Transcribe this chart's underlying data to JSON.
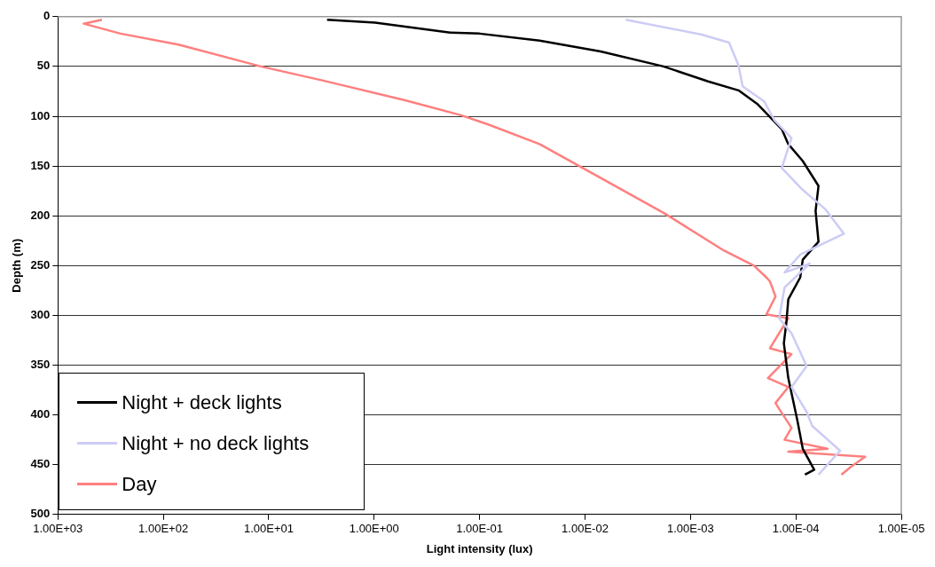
{
  "chart_data": {
    "type": "line",
    "xlabel": "Light intensity (lux)",
    "ylabel": "Depth (m)",
    "log": "x",
    "grid": "y",
    "legend": "bottom left",
    "marker": "none",
    "line_style": "solid",
    "xlim": [
      1000,
      1e-05
    ],
    "ylim": [
      500,
      0
    ],
    "xticks": [
      {
        "value": 1000,
        "label": "1.00E+03"
      },
      {
        "value": 100,
        "label": "1.00E+02"
      },
      {
        "value": 10,
        "label": "1.00E+01"
      },
      {
        "value": 1,
        "label": "1.00E+00"
      },
      {
        "value": 0.1,
        "label": "1.00E-01"
      },
      {
        "value": 0.01,
        "label": "1.00E-02"
      },
      {
        "value": 0.001,
        "label": "1.00E-03"
      },
      {
        "value": 0.0001,
        "label": "1.00E-04"
      },
      {
        "value": 1e-05,
        "label": "1.00E-05"
      }
    ],
    "yticks": [
      0,
      50,
      100,
      150,
      200,
      250,
      300,
      350,
      400,
      450,
      500
    ],
    "series": [
      {
        "name": "Night + no deck lights",
        "color": "#ccccf5",
        "x": [
          0.0041,
          0.00078,
          0.00043,
          0.00035,
          0.00032,
          0.0002,
          0.00016,
          0.00011,
          0.000136,
          8.6e-05,
          5.3e-05,
          3.5e-05,
          9.1e-05,
          0.000128,
          7.4e-05,
          0.000128,
          0.000144,
          0.00011,
          7.9e-05,
          0.00011,
          7.9e-05,
          7e-05,
          3.8e-05,
          6.1e-05
        ],
        "values": [
          3,
          18,
          26,
          49,
          70,
          85,
          104,
          122,
          152,
          174,
          193,
          218,
          239,
          257,
          248,
          272,
          303,
          318,
          351,
          372,
          397,
          411,
          436,
          460
        ]
      },
      {
        "name": "Night + deck lights",
        "color": "#000000",
        "x": [
          2.8,
          0.98,
          0.19,
          0.1,
          0.027,
          0.0071,
          0.0018,
          0.00068,
          0.00035,
          0.00023,
          0.000136,
          0.000118,
          8.6e-05,
          6.1e-05,
          6.5e-05,
          6.1e-05,
          8.6e-05,
          9.1e-05,
          0.000118,
          0.000123,
          0.00013,
          0.000118,
          9.7e-05,
          8.6e-05,
          6.7e-05,
          8.2e-05
        ],
        "values": [
          3,
          6,
          16,
          17,
          24,
          35,
          50,
          65,
          74,
          88,
          113,
          128,
          145,
          170,
          195,
          226,
          244,
          262,
          284,
          307,
          328,
          363,
          405,
          434,
          455,
          460
        ]
      },
      {
        "name": "Day",
        "color": "#ff7f7f",
        "x": [
          382,
          570,
          255,
          72,
          11.9,
          3.1,
          0.51,
          0.15,
          0.084,
          0.027,
          0.008,
          0.0018,
          0.00048,
          0.00025,
          0.00019,
          0.000176,
          0.000156,
          0.00019,
          0.000118,
          0.000176,
          0.00011,
          0.000184,
          0.000118,
          0.000156,
          0.000144,
          0.00011,
          0.000128,
          5e-05,
          0.000118,
          2.2e-05,
          3e-05,
          3.7e-05
        ],
        "values": [
          3,
          7,
          17,
          28,
          50,
          64,
          84,
          99,
          108,
          128,
          159,
          197,
          235,
          250,
          262,
          266,
          281,
          299,
          303,
          333,
          339,
          363,
          372,
          388,
          394,
          413,
          425,
          434,
          437,
          442,
          452,
          460
        ]
      }
    ]
  }
}
